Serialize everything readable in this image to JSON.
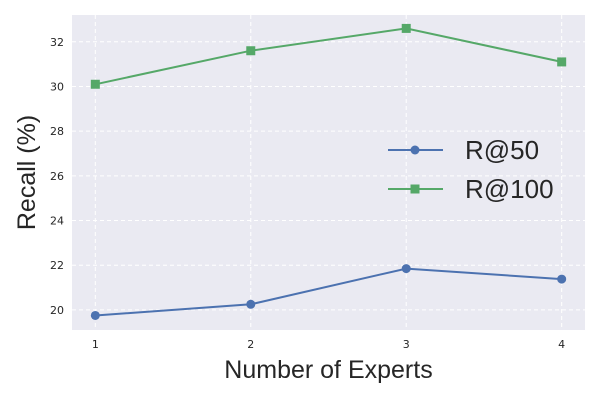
{
  "chart_data": {
    "type": "line",
    "title": "",
    "xlabel": "Number of Experts",
    "ylabel": "Recall (%)",
    "x": [
      1,
      2,
      3,
      4
    ],
    "xlim": [
      0.85,
      4.15
    ],
    "ylim": [
      19.1,
      33.2
    ],
    "xticks": [
      "1",
      "2",
      "3",
      "4"
    ],
    "yticks": [
      20,
      22,
      24,
      26,
      28,
      30,
      32
    ],
    "grid": true,
    "legend_position": "center-right",
    "series": [
      {
        "name": "R@50",
        "values": [
          19.75,
          20.25,
          21.85,
          21.38
        ],
        "color": "#4c72b0",
        "marker": "circle"
      },
      {
        "name": "R@100",
        "values": [
          30.1,
          31.6,
          32.6,
          31.1
        ],
        "color": "#55a868",
        "marker": "square"
      }
    ],
    "background": "#eaeaf2"
  }
}
